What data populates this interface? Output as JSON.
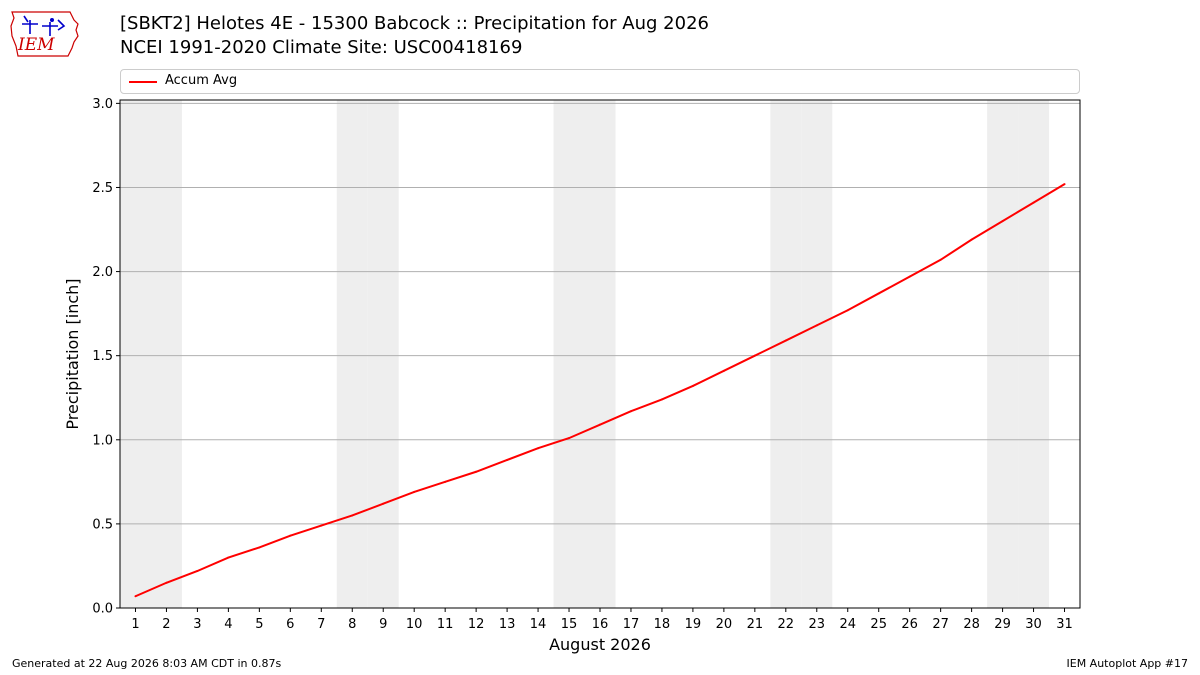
{
  "title_line1": "[SBKT2] Helotes 4E - 15300 Babcock :: Precipitation for Aug 2026",
  "title_line2": "NCEI 1991-2020 Climate Site: USC00418169",
  "logo_text": "IEM",
  "legend": {
    "label": "Accum Avg",
    "placement": "top, above plot"
  },
  "footer": {
    "left": "Generated at 22 Aug 2026 8:03 AM CDT in 0.87s",
    "right": "IEM Autoplot App #17"
  },
  "colors": {
    "series": "#ff0000",
    "weekend_band": "#eeeeee",
    "grid": "#b0b0b0",
    "logo": "#cc0000",
    "logo_accent": "#0000cc"
  },
  "chart_data": {
    "type": "line",
    "xlabel": "August 2026",
    "ylabel": "Precipitation [inch]",
    "xlim": [
      0.5,
      31.5
    ],
    "ylim": [
      0,
      3.02
    ],
    "yticks": [
      0.0,
      0.5,
      1.0,
      1.5,
      2.0,
      2.5,
      3.0
    ],
    "ytick_labels": [
      "0.0",
      "0.5",
      "1.0",
      "1.5",
      "2.0",
      "2.5",
      "3.0"
    ],
    "xticks": [
      1,
      2,
      3,
      4,
      5,
      6,
      7,
      8,
      9,
      10,
      11,
      12,
      13,
      14,
      15,
      16,
      17,
      18,
      19,
      20,
      21,
      22,
      23,
      24,
      25,
      26,
      27,
      28,
      29,
      30,
      31
    ],
    "grid": "horizontal",
    "shaded_days": [
      1,
      2,
      8,
      9,
      15,
      16,
      22,
      23,
      29,
      30
    ],
    "series": [
      {
        "name": "Accum Avg",
        "x": [
          1,
          2,
          3,
          4,
          5,
          6,
          7,
          8,
          9,
          10,
          11,
          12,
          13,
          14,
          15,
          16,
          17,
          18,
          19,
          20,
          21,
          22,
          23,
          24,
          25,
          26,
          27,
          28,
          29,
          30,
          31
        ],
        "values": [
          0.07,
          0.15,
          0.22,
          0.3,
          0.36,
          0.43,
          0.49,
          0.55,
          0.62,
          0.69,
          0.75,
          0.81,
          0.88,
          0.95,
          1.01,
          1.09,
          1.17,
          1.24,
          1.32,
          1.41,
          1.5,
          1.59,
          1.68,
          1.77,
          1.87,
          1.97,
          2.07,
          2.19,
          2.3,
          2.41,
          2.52
        ]
      }
    ]
  }
}
